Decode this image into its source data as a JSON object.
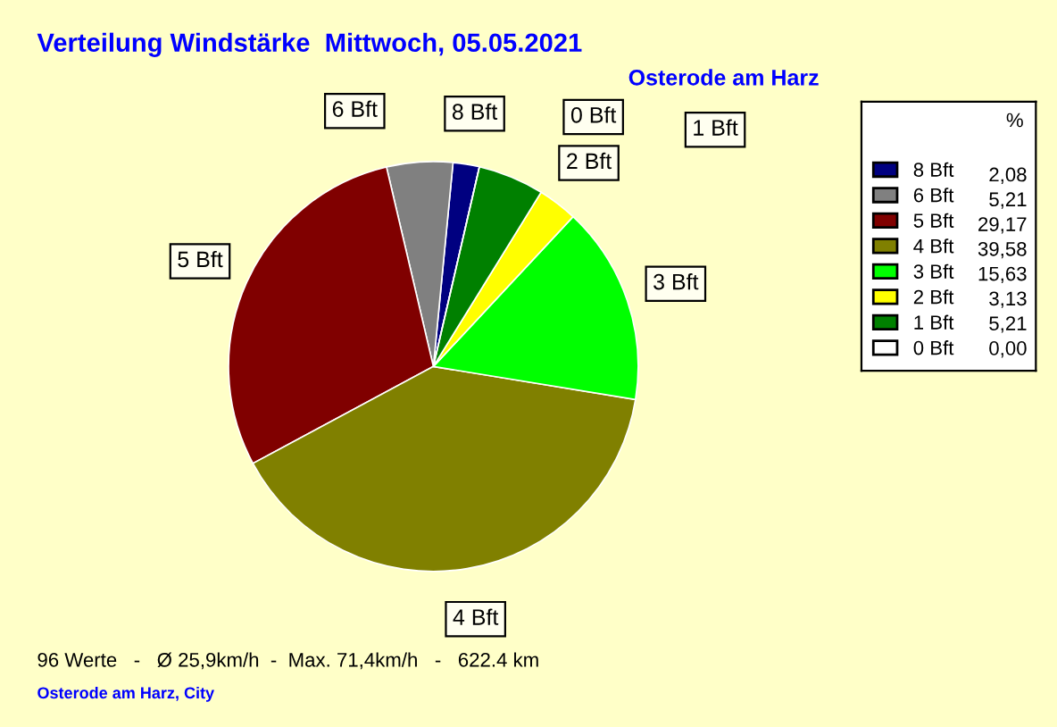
{
  "chart_data": {
    "type": "pie",
    "title": "Verteilung Windstärke  Mittwoch, 05.05.2021",
    "subtitle": "Osterode am Harz",
    "categories": [
      "8 Bft",
      "6 Bft",
      "5 Bft",
      "4 Bft",
      "3 Bft",
      "2 Bft",
      "1 Bft",
      "0 Bft"
    ],
    "values": [
      2.08,
      5.21,
      29.17,
      39.58,
      15.63,
      3.13,
      5.21,
      0.0
    ],
    "value_labels": [
      "2,08",
      "5,21",
      "29,17",
      "39,58",
      "15,63",
      "3,13",
      "5,21",
      "0,00"
    ],
    "colors": [
      "#000080",
      "#808080",
      "#800000",
      "#808000",
      "#00ff00",
      "#ffff00",
      "#008000",
      "#ffffff"
    ],
    "legend": "right",
    "legend_title": "%",
    "annotations": [
      "96 Werte   -   Ø 25,9km/h  -  Max. 71,4km/h   -   622.4 km",
      "Osterode am Harz, City"
    ]
  }
}
